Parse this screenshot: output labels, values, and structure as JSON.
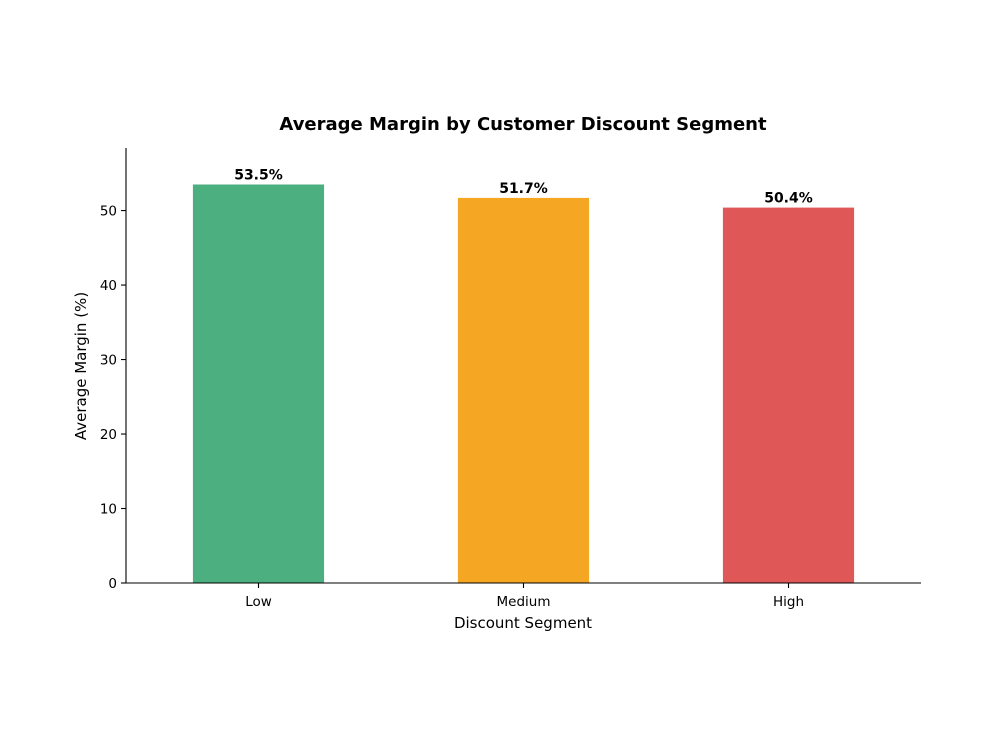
{
  "chart_data": {
    "type": "bar",
    "title": "Average Margin by Customer Discount Segment",
    "xlabel": "Discount Segment",
    "ylabel": "Average Margin (%)",
    "categories": [
      "Low",
      "Medium",
      "High"
    ],
    "values": [
      53.5,
      51.7,
      50.4
    ],
    "data_labels": [
      "53.5%",
      "51.7%",
      "50.4%"
    ],
    "colors": [
      "#4caf80",
      "#f5a623",
      "#e05757"
    ],
    "ylim": [
      0,
      58.4
    ],
    "yticks": [
      0,
      10,
      20,
      30,
      40,
      50
    ],
    "grid": false,
    "legend": "none"
  }
}
